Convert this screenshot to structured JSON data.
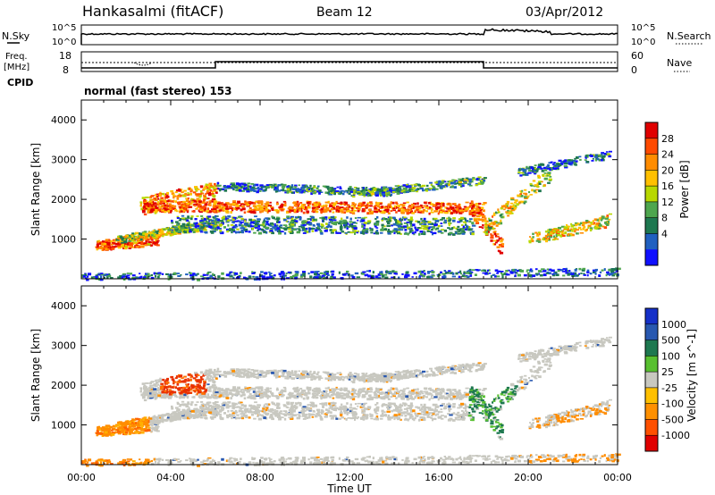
{
  "header": {
    "station": "Hankasalmi (fitACF)",
    "beam": "Beam 12",
    "date": "03/Apr/2012"
  },
  "noise_panel": {
    "left_label": "N.Sky",
    "right_label": "N.Search",
    "ytick_top": "10^5",
    "ytick_bottom": "10^0"
  },
  "freq_panel": {
    "left_label_1": "Freq.",
    "left_label_2": "[MHz]",
    "left_ticks": [
      "18",
      "8"
    ],
    "right_label": "Nave",
    "right_ticks": [
      "60",
      "0"
    ],
    "cpid_label": "CPID",
    "cpid_text": "normal (fast stereo) 153"
  },
  "chart_data": [
    {
      "type": "heatmap",
      "name": "power",
      "xlabel": "Time UT",
      "ylabel": "Slant Range [km]",
      "xlim_hours": [
        0,
        24
      ],
      "ylim": [
        0,
        4500
      ],
      "yticks": [
        1000,
        2000,
        3000,
        4000
      ],
      "colorbar": {
        "label": "Power [dB]",
        "ticks": [
          "28",
          "24",
          "20",
          "16",
          "12",
          "8",
          "4"
        ],
        "colors": [
          "#e00000",
          "#ff4a00",
          "#ff8c00",
          "#ffc000",
          "#b8d800",
          "#4ea64e",
          "#1e7850",
          "#2060c0",
          "#1010ff"
        ]
      }
    },
    {
      "type": "heatmap",
      "name": "velocity",
      "xlabel": "Time UT",
      "ylabel": "Slant Range [km]",
      "xlim_hours": [
        0,
        24
      ],
      "ylim": [
        0,
        4500
      ],
      "yticks": [
        1000,
        2000,
        3000,
        4000
      ],
      "colorbar": {
        "label": "Velocity [m s^-1]",
        "ticks": [
          "1000",
          "500",
          "100",
          "25",
          "-25",
          "-100",
          "-500",
          "-1000"
        ],
        "colors": [
          "#1530c8",
          "#2858b0",
          "#1e7850",
          "#58c030",
          "#c8c8c0",
          "#ffc000",
          "#ff9000",
          "#ff5000",
          "#e00000"
        ]
      }
    }
  ],
  "time_axis": {
    "ticks": [
      "00:00",
      "04:00",
      "08:00",
      "12:00",
      "16:00",
      "20:00",
      "00:00"
    ],
    "label": "Time UT"
  }
}
